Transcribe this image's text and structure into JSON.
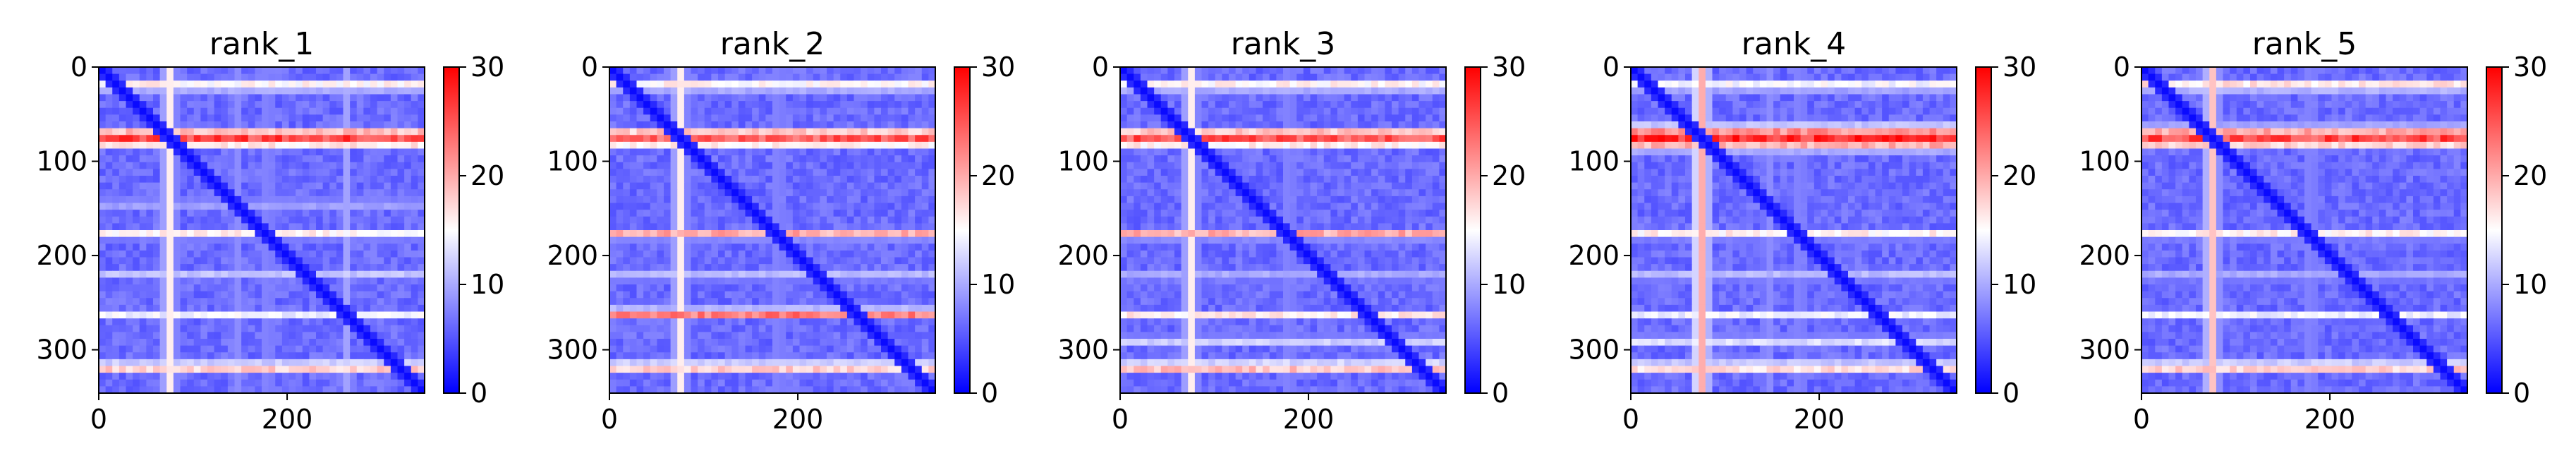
{
  "chart_data": [
    {
      "type": "heatmap",
      "title": "rank_1",
      "xlabel": "",
      "ylabel": "",
      "x_range": [
        0,
        346
      ],
      "y_range": [
        0,
        346
      ],
      "x_ticks": [
        "0",
        "200"
      ],
      "y_ticks": [
        "0",
        "100",
        "200",
        "300"
      ],
      "colorbar": {
        "ticks": [
          "0",
          "10",
          "20",
          "30"
        ],
        "range": [
          0,
          30
        ],
        "colormap": "bwr"
      },
      "bands_h": [
        {
          "pos": 20,
          "width": 5,
          "intensity": 0.55
        },
        {
          "pos": 75,
          "width": 9,
          "intensity": 0.95
        },
        {
          "pos": 145,
          "width": 3,
          "intensity": 0.3
        },
        {
          "pos": 178,
          "width": 3,
          "intensity": 0.55
        },
        {
          "pos": 220,
          "width": 3,
          "intensity": 0.3
        },
        {
          "pos": 262,
          "width": 3,
          "intensity": 0.45
        },
        {
          "pos": 318,
          "width": 3,
          "intensity": 0.85
        }
      ],
      "bands_v": [
        {
          "pos": 75,
          "width": 6,
          "intensity": 0.45
        },
        {
          "pos": 145,
          "width": 3,
          "intensity": 0.2
        },
        {
          "pos": 180,
          "width": 3,
          "intensity": 0.2
        },
        {
          "pos": 262,
          "width": 3,
          "intensity": 0.2
        }
      ]
    },
    {
      "type": "heatmap",
      "title": "rank_2",
      "xlabel": "",
      "ylabel": "",
      "x_range": [
        0,
        346
      ],
      "y_range": [
        0,
        346
      ],
      "x_ticks": [
        "0",
        "200"
      ],
      "y_ticks": [
        "0",
        "100",
        "200",
        "300"
      ],
      "colorbar": {
        "ticks": [
          "0",
          "10",
          "20",
          "30"
        ],
        "range": [
          0,
          30
        ],
        "colormap": "bwr"
      },
      "bands_h": [
        {
          "pos": 20,
          "width": 5,
          "intensity": 0.55
        },
        {
          "pos": 75,
          "width": 9,
          "intensity": 0.9
        },
        {
          "pos": 178,
          "width": 4,
          "intensity": 0.75
        },
        {
          "pos": 222,
          "width": 3,
          "intensity": 0.35
        },
        {
          "pos": 262,
          "width": 5,
          "intensity": 0.85
        },
        {
          "pos": 318,
          "width": 3,
          "intensity": 0.85
        }
      ],
      "bands_v": [
        {
          "pos": 75,
          "width": 6,
          "intensity": 0.45
        },
        {
          "pos": 180,
          "width": 3,
          "intensity": 0.2
        }
      ]
    },
    {
      "type": "heatmap",
      "title": "rank_3",
      "xlabel": "",
      "ylabel": "",
      "x_range": [
        0,
        346
      ],
      "y_range": [
        0,
        346
      ],
      "x_ticks": [
        "0",
        "200"
      ],
      "y_ticks": [
        "0",
        "100",
        "200",
        "300"
      ],
      "colorbar": {
        "ticks": [
          "0",
          "10",
          "20",
          "30"
        ],
        "range": [
          0,
          30
        ],
        "colormap": "bwr"
      },
      "bands_h": [
        {
          "pos": 20,
          "width": 5,
          "intensity": 0.55
        },
        {
          "pos": 75,
          "width": 9,
          "intensity": 0.92
        },
        {
          "pos": 178,
          "width": 4,
          "intensity": 0.75
        },
        {
          "pos": 222,
          "width": 3,
          "intensity": 0.3
        },
        {
          "pos": 262,
          "width": 4,
          "intensity": 0.55
        },
        {
          "pos": 290,
          "width": 3,
          "intensity": 0.4
        },
        {
          "pos": 318,
          "width": 3,
          "intensity": 0.9
        }
      ],
      "bands_v": [
        {
          "pos": 75,
          "width": 6,
          "intensity": 0.45
        },
        {
          "pos": 180,
          "width": 3,
          "intensity": 0.2
        }
      ]
    },
    {
      "type": "heatmap",
      "title": "rank_4",
      "xlabel": "",
      "ylabel": "",
      "x_range": [
        0,
        346
      ],
      "y_range": [
        0,
        346
      ],
      "x_ticks": [
        "0",
        "200"
      ],
      "y_ticks": [
        "0",
        "100",
        "200",
        "300"
      ],
      "colorbar": {
        "ticks": [
          "0",
          "10",
          "20",
          "30"
        ],
        "range": [
          0,
          30
        ],
        "colormap": "bwr"
      },
      "bands_h": [
        {
          "pos": 20,
          "width": 5,
          "intensity": 0.5
        },
        {
          "pos": 75,
          "width": 11,
          "intensity": 1.0
        },
        {
          "pos": 178,
          "width": 3,
          "intensity": 0.55
        },
        {
          "pos": 222,
          "width": 3,
          "intensity": 0.35
        },
        {
          "pos": 262,
          "width": 3,
          "intensity": 0.45
        },
        {
          "pos": 290,
          "width": 4,
          "intensity": 0.45
        },
        {
          "pos": 318,
          "width": 3,
          "intensity": 0.8
        }
      ],
      "bands_v": [
        {
          "pos": 75,
          "width": 7,
          "intensity": 0.6
        },
        {
          "pos": 145,
          "width": 3,
          "intensity": 0.2
        },
        {
          "pos": 180,
          "width": 3,
          "intensity": 0.2
        }
      ]
    },
    {
      "type": "heatmap",
      "title": "rank_5",
      "xlabel": "",
      "ylabel": "",
      "x_range": [
        0,
        346
      ],
      "y_range": [
        0,
        346
      ],
      "x_ticks": [
        "0",
        "200"
      ],
      "y_ticks": [
        "0",
        "100",
        "200",
        "300"
      ],
      "colorbar": {
        "ticks": [
          "0",
          "10",
          "20",
          "30"
        ],
        "range": [
          0,
          30
        ],
        "colormap": "bwr"
      },
      "bands_h": [
        {
          "pos": 20,
          "width": 5,
          "intensity": 0.6
        },
        {
          "pos": 75,
          "width": 10,
          "intensity": 0.95
        },
        {
          "pos": 178,
          "width": 3,
          "intensity": 0.55
        },
        {
          "pos": 222,
          "width": 3,
          "intensity": 0.3
        },
        {
          "pos": 262,
          "width": 3,
          "intensity": 0.45
        },
        {
          "pos": 318,
          "width": 3,
          "intensity": 0.85
        }
      ],
      "bands_v": [
        {
          "pos": 75,
          "width": 6,
          "intensity": 0.55
        },
        {
          "pos": 180,
          "width": 3,
          "intensity": 0.2
        }
      ]
    }
  ]
}
